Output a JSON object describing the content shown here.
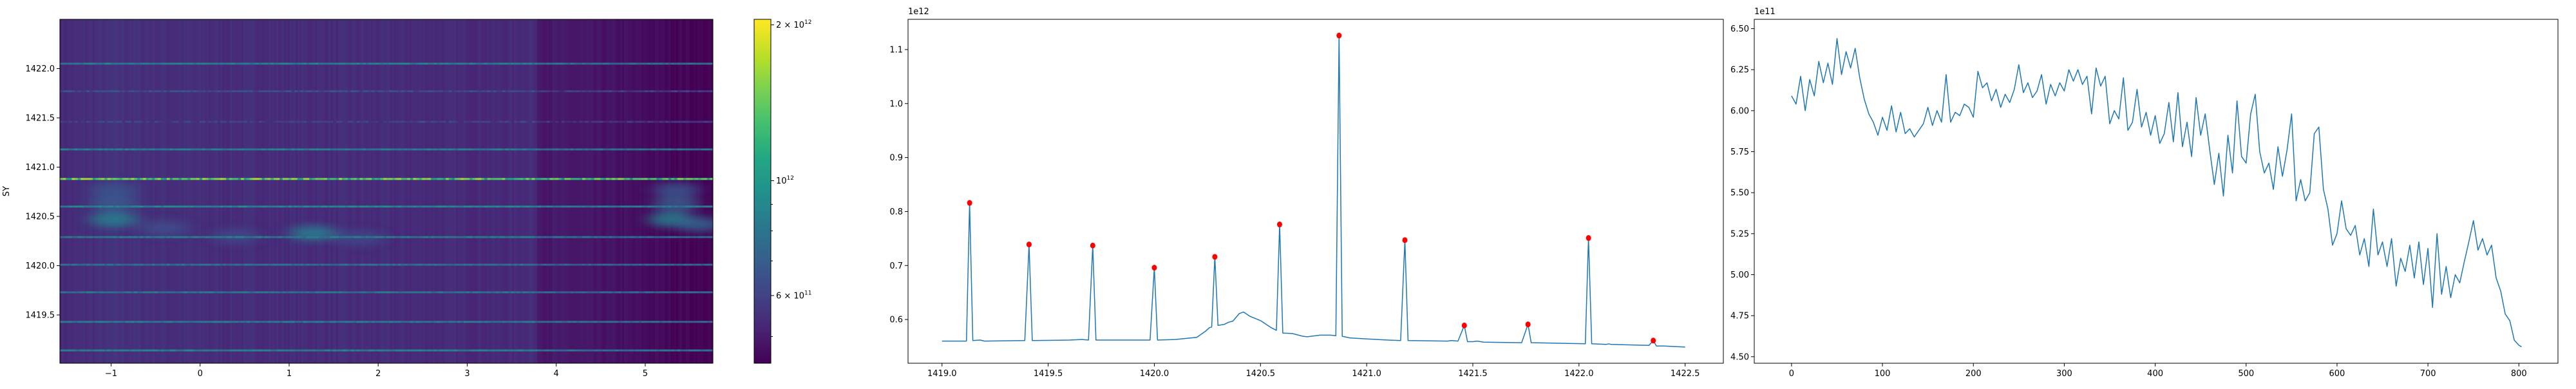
{
  "chart_data": [
    {
      "type": "heatmap",
      "ylabel": "SY",
      "xlabel": "",
      "xlim": [
        -1.575,
        5.76
      ],
      "ylim": [
        1419.01,
        1422.5
      ],
      "xticks": [
        -1,
        0,
        1,
        2,
        3,
        4,
        5
      ],
      "xtick_labels": [
        "−1",
        "0",
        "1",
        "2",
        "3",
        "4",
        "5"
      ],
      "yticks": [
        1419.5,
        1420.0,
        1420.5,
        1421.0,
        1421.5,
        1422.0
      ],
      "ytick_labels": [
        "1419.5",
        "1420.0",
        "1420.5",
        "1421.0",
        "1421.5",
        "1422.0"
      ],
      "colormap": "viridis",
      "color_scale": "log",
      "colorbar": {
        "range": [
          444000000000.0,
          2050000000000.0
        ],
        "major_ticks": [
          {
            "value": 2000000000000.0,
            "mantissa": "2 × 10",
            "exp": "12"
          },
          {
            "value": 1000000000000.0,
            "mantissa": "10",
            "exp": "12"
          },
          {
            "value": 600000000000.0,
            "mantissa": "6 × 10",
            "exp": "11"
          }
        ],
        "minor_ticks": [
          500000000000.0,
          700000000000.0,
          800000000000.0,
          900000000000.0
        ]
      },
      "background_level": [
        [
          -1.575,
          530000000000.0
        ],
        [
          -1.0,
          550000000000.0
        ],
        [
          0.0,
          540000000000.0
        ],
        [
          2.0,
          535000000000.0
        ],
        [
          3.5,
          530000000000.0
        ],
        [
          3.72,
          545000000000.0
        ],
        [
          3.8,
          495000000000.0
        ],
        [
          4.5,
          480000000000.0
        ],
        [
          5.0,
          465000000000.0
        ],
        [
          5.76,
          445000000000.0
        ]
      ],
      "bright_rows": [
        {
          "y": 1419.14,
          "level": 830000000000.0
        },
        {
          "y": 1419.43,
          "level": 800000000000.0
        },
        {
          "y": 1419.73,
          "level": 780000000000.0
        },
        {
          "y": 1420.01,
          "level": 760000000000.0
        },
        {
          "y": 1420.29,
          "level": 800000000000.0
        },
        {
          "y": 1420.6,
          "level": 860000000000.0
        },
        {
          "y": 1420.88,
          "level": 1350000000000.0
        },
        {
          "y": 1421.18,
          "level": 830000000000.0
        },
        {
          "y": 1421.46,
          "level": 590000000000.0
        },
        {
          "y": 1421.77,
          "level": 620000000000.0
        },
        {
          "y": 1422.05,
          "level": 820000000000.0
        }
      ],
      "blobs": [
        {
          "x": -0.97,
          "y": 1420.47,
          "level": 860000000000.0
        },
        {
          "x": -0.97,
          "y": 1420.64,
          "level": 680000000000.0
        },
        {
          "x": -0.97,
          "y": 1420.77,
          "level": 660000000000.0
        },
        {
          "x": -0.4,
          "y": 1420.38,
          "level": 630000000000.0
        },
        {
          "x": 0.4,
          "y": 1420.3,
          "level": 620000000000.0
        },
        {
          "x": 1.27,
          "y": 1420.33,
          "level": 840000000000.0
        },
        {
          "x": 1.8,
          "y": 1420.28,
          "level": 620000000000.0
        },
        {
          "x": 5.3,
          "y": 1420.47,
          "level": 860000000000.0
        },
        {
          "x": 5.6,
          "y": 1420.42,
          "level": 720000000000.0
        },
        {
          "x": 5.35,
          "y": 1420.63,
          "level": 680000000000.0
        },
        {
          "x": 5.35,
          "y": 1420.77,
          "level": 660000000000.0
        }
      ]
    },
    {
      "type": "line",
      "offset_label": "1e12",
      "xlim": [
        1418.84,
        1422.68
      ],
      "ylim": [
        0.519,
        1.156
      ],
      "xticks": [
        1419.0,
        1419.5,
        1420.0,
        1420.5,
        1421.0,
        1421.5,
        1422.0,
        1422.5
      ],
      "xtick_labels": [
        "1419.0",
        "1419.5",
        "1420.0",
        "1420.5",
        "1421.0",
        "1421.5",
        "1422.0",
        "1422.5"
      ],
      "yticks": [
        0.6,
        0.7,
        0.8,
        0.9,
        1.0,
        1.1
      ],
      "ytick_labels": [
        "0.6",
        "0.7",
        "0.8",
        "0.9",
        "1.0",
        "1.1"
      ],
      "line_color": "#1f77b4",
      "marker_color": "#ff0000",
      "x": [
        1419.0,
        1419.1,
        1419.115,
        1419.13,
        1419.145,
        1419.18,
        1419.2,
        1419.39,
        1419.41,
        1419.425,
        1419.6,
        1419.66,
        1419.69,
        1419.71,
        1419.725,
        1419.95,
        1419.98,
        1420.0,
        1420.015,
        1420.1,
        1420.2,
        1420.24,
        1420.26,
        1420.27,
        1420.285,
        1420.3,
        1420.33,
        1420.35,
        1420.37,
        1420.4,
        1420.42,
        1420.45,
        1420.5,
        1420.55,
        1420.575,
        1420.59,
        1420.605,
        1420.65,
        1420.7,
        1420.72,
        1420.78,
        1420.83,
        1420.855,
        1420.87,
        1420.885,
        1420.92,
        1421.0,
        1421.1,
        1421.16,
        1421.18,
        1421.195,
        1421.38,
        1421.4,
        1421.43,
        1421.46,
        1421.475,
        1421.5,
        1421.52,
        1421.55,
        1421.73,
        1421.76,
        1421.775,
        1422.03,
        1422.045,
        1422.06,
        1422.13,
        1422.14,
        1422.15,
        1422.33,
        1422.35,
        1422.365,
        1422.4,
        1422.5
      ],
      "y": [
        0.56,
        0.56,
        0.56,
        0.816,
        0.561,
        0.562,
        0.56,
        0.561,
        0.739,
        0.561,
        0.562,
        0.563,
        0.562,
        0.737,
        0.562,
        0.562,
        0.562,
        0.696,
        0.562,
        0.563,
        0.567,
        0.578,
        0.585,
        0.586,
        0.716,
        0.589,
        0.591,
        0.595,
        0.597,
        0.611,
        0.614,
        0.606,
        0.598,
        0.585,
        0.58,
        0.776,
        0.575,
        0.574,
        0.569,
        0.568,
        0.571,
        0.571,
        0.57,
        1.126,
        0.569,
        0.566,
        0.564,
        0.562,
        0.561,
        0.747,
        0.561,
        0.56,
        0.561,
        0.56,
        0.589,
        0.559,
        0.559,
        0.56,
        0.558,
        0.557,
        0.591,
        0.557,
        0.555,
        0.751,
        0.555,
        0.554,
        0.555,
        0.554,
        0.552,
        0.561,
        0.551,
        0.551,
        0.549
      ],
      "peaks": {
        "x": [
          1419.13,
          1419.41,
          1419.71,
          1420.0,
          1420.285,
          1420.59,
          1420.87,
          1421.18,
          1421.46,
          1421.76,
          1422.045,
          1422.35
        ],
        "y": [
          0.816,
          0.739,
          0.737,
          0.696,
          0.716,
          0.776,
          1.126,
          0.747,
          0.589,
          0.591,
          0.751,
          0.561
        ]
      }
    },
    {
      "type": "line",
      "offset_label": "1e11",
      "xlim": [
        -41,
        843
      ],
      "ylim": [
        4.46,
        6.557
      ],
      "xticks": [
        0,
        100,
        200,
        300,
        400,
        500,
        600,
        700,
        800
      ],
      "xtick_labels": [
        "0",
        "100",
        "200",
        "300",
        "400",
        "500",
        "600",
        "700",
        "800"
      ],
      "yticks": [
        4.5,
        4.75,
        5.0,
        5.25,
        5.5,
        5.75,
        6.0,
        6.25,
        6.5
      ],
      "ytick_labels": [
        "4.50",
        "4.75",
        "5.00",
        "5.25",
        "5.50",
        "5.75",
        "6.00",
        "6.25",
        "6.50"
      ],
      "line_color": "#1f77b4",
      "x": [
        0,
        5,
        10,
        15,
        20,
        25,
        30,
        35,
        40,
        45,
        50,
        55,
        60,
        65,
        70,
        75,
        80,
        85,
        90,
        95,
        100,
        105,
        110,
        115,
        120,
        125,
        130,
        135,
        140,
        145,
        150,
        155,
        160,
        165,
        170,
        175,
        180,
        185,
        190,
        195,
        200,
        205,
        210,
        215,
        220,
        225,
        230,
        235,
        240,
        245,
        250,
        255,
        260,
        265,
        270,
        275,
        280,
        285,
        290,
        295,
        300,
        305,
        310,
        315,
        320,
        325,
        330,
        335,
        340,
        345,
        350,
        355,
        360,
        365,
        370,
        375,
        380,
        385,
        390,
        395,
        400,
        405,
        410,
        415,
        420,
        425,
        430,
        435,
        440,
        445,
        450,
        455,
        460,
        465,
        470,
        475,
        480,
        485,
        490,
        495,
        500,
        505,
        510,
        515,
        520,
        525,
        530,
        535,
        540,
        545,
        550,
        555,
        560,
        565,
        570,
        575,
        580,
        585,
        590,
        595,
        600,
        605,
        610,
        615,
        620,
        625,
        630,
        635,
        640,
        645,
        650,
        655,
        660,
        665,
        670,
        675,
        680,
        685,
        690,
        695,
        700,
        705,
        710,
        715,
        720,
        725,
        730,
        735,
        740,
        745,
        750,
        755,
        760,
        765,
        770,
        775,
        780,
        785,
        790,
        795,
        800,
        803
      ],
      "y": [
        6.09,
        6.04,
        6.21,
        6.0,
        6.19,
        6.09,
        6.3,
        6.17,
        6.29,
        6.16,
        6.44,
        6.22,
        6.36,
        6.26,
        6.38,
        6.2,
        6.07,
        5.98,
        5.93,
        5.85,
        5.96,
        5.88,
        6.03,
        5.87,
        5.99,
        5.86,
        5.89,
        5.84,
        5.88,
        5.92,
        6.02,
        5.91,
        6.0,
        5.93,
        6.22,
        5.93,
        5.99,
        5.97,
        6.04,
        6.02,
        5.96,
        6.24,
        6.14,
        6.17,
        6.06,
        6.13,
        6.02,
        6.1,
        6.05,
        6.13,
        6.28,
        6.11,
        6.17,
        6.08,
        6.12,
        6.22,
        6.04,
        6.16,
        6.09,
        6.17,
        6.12,
        6.25,
        6.18,
        6.25,
        6.16,
        6.21,
        5.98,
        6.26,
        6.15,
        6.21,
        5.92,
        6.0,
        5.95,
        6.2,
        5.88,
        5.93,
        6.13,
        5.9,
        5.99,
        5.85,
        5.97,
        5.8,
        5.86,
        6.05,
        5.81,
        6.11,
        5.78,
        5.93,
        5.72,
        6.08,
        5.85,
        5.98,
        5.76,
        5.55,
        5.74,
        5.48,
        5.85,
        5.62,
        6.06,
        5.72,
        5.68,
        5.98,
        6.1,
        5.75,
        5.62,
        5.68,
        5.52,
        5.78,
        5.6,
        5.76,
        5.98,
        5.45,
        5.58,
        5.45,
        5.5,
        5.86,
        5.9,
        5.52,
        5.4,
        5.18,
        5.25,
        5.45,
        5.28,
        5.24,
        5.3,
        5.12,
        5.22,
        5.05,
        5.4,
        5.12,
        5.2,
        5.05,
        5.22,
        4.93,
        5.1,
        5.02,
        5.18,
        4.98,
        5.2,
        4.94,
        5.16,
        4.8,
        5.25,
        4.88,
        5.05,
        4.86,
        5.0,
        4.95,
        5.08,
        5.2,
        5.33,
        5.15,
        5.22,
        5.12,
        5.18,
        4.98,
        4.9,
        4.76,
        4.72,
        4.6,
        4.57,
        4.56
      ]
    }
  ]
}
